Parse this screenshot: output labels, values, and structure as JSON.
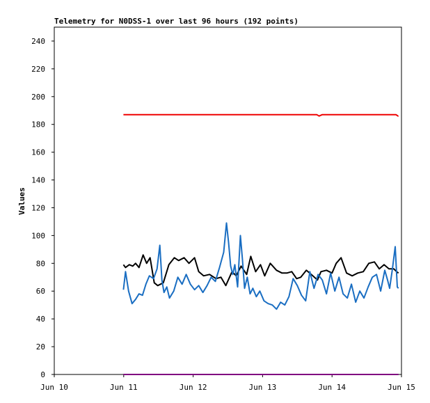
{
  "chart_data": {
    "type": "line",
    "title": "Telemetry for N0DSS-1 over last 96 hours (192 points)",
    "ylabel": "Values",
    "xlabel": "",
    "ylim": [
      0,
      250
    ],
    "yticks": [
      0,
      20,
      40,
      60,
      80,
      100,
      120,
      140,
      160,
      180,
      200,
      220,
      240
    ],
    "xlim": [
      "2020-06-10T00:00",
      "2020-06-15T00:00"
    ],
    "xticks": [
      {
        "label": "Jun 10",
        "x": "2020-06-10T00:00"
      },
      {
        "label": "Jun 11",
        "x": "2020-06-11T00:00"
      },
      {
        "label": "Jun 12",
        "x": "2020-06-12T00:00"
      },
      {
        "label": "Jun 13",
        "x": "2020-06-13T00:00"
      },
      {
        "label": "Jun 14",
        "x": "2020-06-14T00:00"
      },
      {
        "label": "Jun 15",
        "x": "2020-06-15T00:00"
      }
    ],
    "grid": false,
    "legend": "none",
    "series": [
      {
        "color": "#ee0000",
        "x": [
          "2020-06-10T23:54",
          "2020-06-12T00:00",
          "2020-06-13T00:00",
          "2020-06-13T18:43",
          "2020-06-13T19:31",
          "2020-06-13T20:38",
          "2020-06-14T00:00",
          "2020-06-14T22:05",
          "2020-06-14T22:48",
          "2020-06-14T22:58"
        ],
        "y": [
          187,
          187,
          187,
          187,
          186,
          187,
          187,
          187,
          186,
          186
        ]
      },
      {
        "color": "#000000",
        "x": [
          "2020-06-10T23:54",
          "2020-06-11T00:38",
          "2020-06-11T01:55",
          "2020-06-11T03:07",
          "2020-06-11T04:05",
          "2020-06-11T05:17",
          "2020-06-11T06:43",
          "2020-06-11T07:55",
          "2020-06-11T09:07",
          "2020-06-11T10:34",
          "2020-06-11T11:46",
          "2020-06-11T13:41",
          "2020-06-11T15:36",
          "2020-06-11T17:31",
          "2020-06-11T18:58",
          "2020-06-11T20:53",
          "2020-06-11T22:34",
          "2020-06-12T00:29",
          "2020-06-12T01:55",
          "2020-06-12T03:36",
          "2020-06-12T05:41",
          "2020-06-12T07:55",
          "2020-06-12T09:36",
          "2020-06-12T11:17",
          "2020-06-12T13:26",
          "2020-06-12T14:53",
          "2020-06-12T16:34",
          "2020-06-12T18:29",
          "2020-06-12T19:55",
          "2020-06-12T21:36",
          "2020-06-12T23:17",
          "2020-06-13T00:43",
          "2020-06-13T02:38",
          "2020-06-13T04:48",
          "2020-06-13T06:43",
          "2020-06-13T08:24",
          "2020-06-13T10:05",
          "2020-06-13T11:46",
          "2020-06-13T13:12",
          "2020-06-13T15:07",
          "2020-06-13T16:48",
          "2020-06-13T18:58",
          "2020-06-13T20:10",
          "2020-06-13T22:05",
          "2020-06-14T00:00",
          "2020-06-14T01:26",
          "2020-06-14T03:07",
          "2020-06-14T05:02",
          "2020-06-14T06:58",
          "2020-06-14T08:53",
          "2020-06-14T10:48",
          "2020-06-14T12:43",
          "2020-06-14T14:38",
          "2020-06-14T16:19",
          "2020-06-14T18:00",
          "2020-06-14T19:41",
          "2020-06-14T21:22",
          "2020-06-14T22:19",
          "2020-06-14T22:58"
        ],
        "y": [
          79,
          77,
          79,
          78,
          80,
          77,
          86,
          80,
          84,
          66,
          64,
          66,
          79,
          84,
          82,
          84,
          80,
          84,
          74,
          71,
          72,
          69,
          70,
          64,
          74,
          71,
          78,
          72,
          85,
          74,
          79,
          71,
          80,
          75,
          73,
          73,
          74,
          69,
          70,
          75,
          72,
          68,
          74,
          75,
          73,
          80,
          84,
          73,
          71,
          73,
          74,
          80,
          81,
          76,
          79,
          76,
          76,
          74,
          73
        ]
      },
      {
        "color": "#1a6ec2",
        "x": [
          "2020-06-10T23:54",
          "2020-06-11T00:38",
          "2020-06-11T01:41",
          "2020-06-11T02:53",
          "2020-06-11T04:05",
          "2020-06-11T05:17",
          "2020-06-11T06:29",
          "2020-06-11T07:41",
          "2020-06-11T08:53",
          "2020-06-11T10:19",
          "2020-06-11T11:31",
          "2020-06-11T12:29",
          "2020-06-11T13:12",
          "2020-06-11T13:55",
          "2020-06-11T14:53",
          "2020-06-11T15:50",
          "2020-06-11T17:17",
          "2020-06-11T18:43",
          "2020-06-11T20:10",
          "2020-06-11T21:36",
          "2020-06-11T23:02",
          "2020-06-12T00:29",
          "2020-06-12T01:55",
          "2020-06-12T03:22",
          "2020-06-12T04:48",
          "2020-06-12T06:14",
          "2020-06-12T07:41",
          "2020-06-12T09:07",
          "2020-06-12T10:34",
          "2020-06-12T11:31",
          "2020-06-12T12:14",
          "2020-06-12T12:58",
          "2020-06-12T13:41",
          "2020-06-12T14:24",
          "2020-06-12T15:22",
          "2020-06-12T16:19",
          "2020-06-12T17:02",
          "2020-06-12T17:46",
          "2020-06-12T18:43",
          "2020-06-12T19:41",
          "2020-06-12T20:38",
          "2020-06-12T21:50",
          "2020-06-12T23:02",
          "2020-06-13T00:29",
          "2020-06-13T01:55",
          "2020-06-13T03:22",
          "2020-06-13T04:48",
          "2020-06-13T06:14",
          "2020-06-13T07:41",
          "2020-06-13T09:07",
          "2020-06-13T10:34",
          "2020-06-13T12:00",
          "2020-06-13T13:26",
          "2020-06-13T14:53",
          "2020-06-13T16:19",
          "2020-06-13T17:46",
          "2020-06-13T19:12",
          "2020-06-13T20:38",
          "2020-06-13T22:05",
          "2020-06-13T23:31",
          "2020-06-14T00:58",
          "2020-06-14T02:24",
          "2020-06-14T03:50",
          "2020-06-14T05:17",
          "2020-06-14T06:43",
          "2020-06-14T08:10",
          "2020-06-14T09:36",
          "2020-06-14T11:02",
          "2020-06-14T12:29",
          "2020-06-14T13:55",
          "2020-06-14T15:22",
          "2020-06-14T16:48",
          "2020-06-14T18:14",
          "2020-06-14T19:12",
          "2020-06-14T19:55",
          "2020-06-14T20:53",
          "2020-06-14T21:50",
          "2020-06-14T22:34",
          "2020-06-14T22:58"
        ],
        "y": [
          61,
          74,
          60,
          51,
          54,
          58,
          57,
          65,
          71,
          69,
          76,
          93,
          68,
          59,
          63,
          55,
          60,
          70,
          65,
          72,
          65,
          61,
          64,
          59,
          64,
          70,
          67,
          77,
          88,
          109,
          95,
          78,
          72,
          79,
          63,
          100,
          83,
          62,
          70,
          58,
          62,
          56,
          60,
          53,
          51,
          50,
          47,
          52,
          50,
          56,
          69,
          64,
          57,
          53,
          74,
          62,
          72,
          68,
          58,
          73,
          60,
          70,
          58,
          55,
          65,
          52,
          60,
          55,
          63,
          70,
          72,
          60,
          75,
          68,
          62,
          76,
          92,
          63,
          62
        ]
      },
      {
        "color": "#800080",
        "x": [
          "2020-06-10T23:54",
          "2020-06-14T22:58"
        ],
        "y": [
          0,
          0
        ]
      }
    ]
  }
}
